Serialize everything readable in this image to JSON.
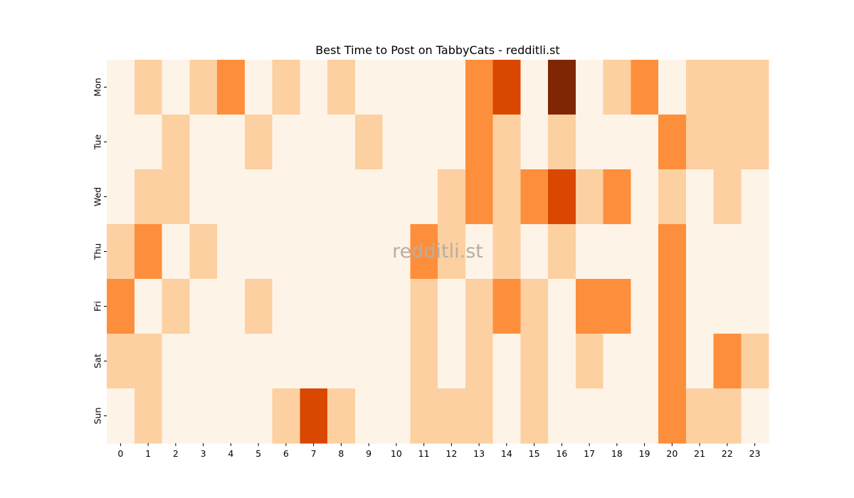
{
  "chart_data": {
    "type": "heatmap",
    "title": "Best Time to Post on TabbyCats - redditli.st",
    "watermark": "redditli.st",
    "xlabel": "",
    "ylabel": "",
    "x": [
      "0",
      "1",
      "2",
      "3",
      "4",
      "5",
      "6",
      "7",
      "8",
      "9",
      "10",
      "11",
      "12",
      "13",
      "14",
      "15",
      "16",
      "17",
      "18",
      "19",
      "20",
      "21",
      "22",
      "23"
    ],
    "y": [
      "Mon",
      "Tue",
      "Wed",
      "Thu",
      "Fri",
      "Sat",
      "Sun"
    ],
    "colormap": "Oranges",
    "levels": 5,
    "colors": [
      "#fef3e7",
      "#fcd0a1",
      "#fd8f3c",
      "#d94701",
      "#7f2704"
    ],
    "values": [
      [
        0,
        1,
        0,
        1,
        2,
        0,
        1,
        0,
        1,
        0,
        0,
        0,
        0,
        2,
        3,
        0,
        4,
        0,
        1,
        2,
        0,
        1,
        1,
        1
      ],
      [
        0,
        0,
        1,
        0,
        0,
        1,
        0,
        0,
        0,
        1,
        0,
        0,
        0,
        2,
        1,
        0,
        1,
        0,
        0,
        0,
        2,
        1,
        1,
        1
      ],
      [
        0,
        1,
        1,
        0,
        0,
        0,
        0,
        0,
        0,
        0,
        0,
        0,
        1,
        2,
        1,
        2,
        3,
        1,
        2,
        0,
        1,
        0,
        1,
        0
      ],
      [
        1,
        2,
        0,
        1,
        0,
        0,
        0,
        0,
        0,
        0,
        0,
        2,
        1,
        0,
        1,
        0,
        1,
        0,
        0,
        0,
        2,
        0,
        0,
        0
      ],
      [
        2,
        0,
        1,
        0,
        0,
        1,
        0,
        0,
        0,
        0,
        0,
        1,
        0,
        1,
        2,
        1,
        0,
        2,
        2,
        0,
        2,
        0,
        0,
        0
      ],
      [
        1,
        1,
        0,
        0,
        0,
        0,
        0,
        0,
        0,
        0,
        0,
        1,
        0,
        1,
        0,
        1,
        0,
        1,
        0,
        0,
        2,
        0,
        2,
        1
      ],
      [
        0,
        1,
        0,
        0,
        0,
        0,
        1,
        3,
        1,
        0,
        0,
        1,
        1,
        1,
        0,
        1,
        0,
        0,
        0,
        0,
        2,
        1,
        1,
        0
      ]
    ]
  }
}
